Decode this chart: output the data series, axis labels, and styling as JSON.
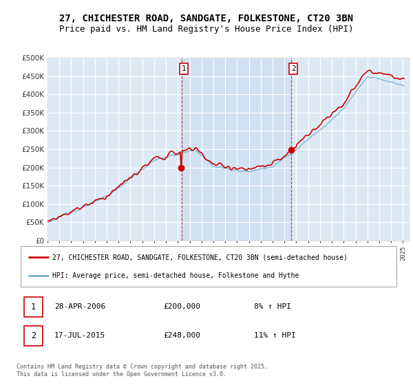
{
  "title": "27, CHICHESTER ROAD, SANDGATE, FOLKESTONE, CT20 3BN",
  "subtitle": "Price paid vs. HM Land Registry's House Price Index (HPI)",
  "title_fontsize": 10,
  "subtitle_fontsize": 9,
  "background_color": "#ffffff",
  "plot_bg_color": "#dce9f5",
  "plot_bg_color2": "#c8ddf0",
  "grid_color": "#ffffff",
  "ylabel_values": [
    "£0",
    "£50K",
    "£100K",
    "£150K",
    "£200K",
    "£250K",
    "£300K",
    "£350K",
    "£400K",
    "£450K",
    "£500K"
  ],
  "yticks": [
    0,
    50000,
    100000,
    150000,
    200000,
    250000,
    300000,
    350000,
    400000,
    450000,
    500000
  ],
  "xlim_start": 1995.0,
  "xlim_end": 2025.5,
  "ylim_min": 0,
  "ylim_max": 500000,
  "sale1_date": 2006.32,
  "sale1_price": 200000,
  "sale1_label": "1",
  "sale2_date": 2015.54,
  "sale2_price": 248000,
  "sale2_label": "2",
  "line_color_property": "#cc0000",
  "line_color_hpi": "#7aadcf",
  "legend_label_property": "27, CHICHESTER ROAD, SANDGATE, FOLKESTONE, CT20 3BN (semi-detached house)",
  "legend_label_hpi": "HPI: Average price, semi-detached house, Folkestone and Hythe",
  "footnote": "Contains HM Land Registry data © Crown copyright and database right 2025.\nThis data is licensed under the Open Government Licence v3.0.",
  "xtick_years": [
    1995,
    1996,
    1997,
    1998,
    1999,
    2000,
    2001,
    2002,
    2003,
    2004,
    2005,
    2006,
    2007,
    2008,
    2009,
    2010,
    2011,
    2012,
    2013,
    2014,
    2015,
    2016,
    2017,
    2018,
    2019,
    2020,
    2021,
    2022,
    2023,
    2024,
    2025
  ]
}
